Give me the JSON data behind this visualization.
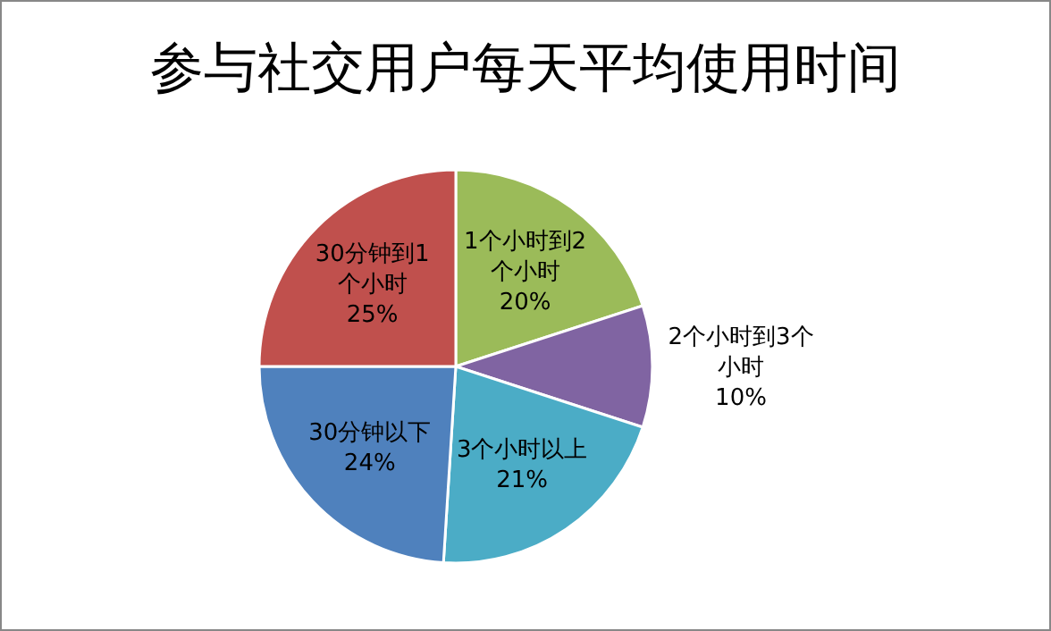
{
  "chart_data": {
    "type": "pie",
    "title": "参与社交用户每天平均使用时间",
    "categories": [
      "1个小时到2个小时",
      "2个小时到3个小时",
      "3个小时以上",
      "30分钟以下",
      "30分钟到1个小时"
    ],
    "values": [
      20,
      10,
      21,
      24,
      25
    ],
    "colors": [
      "#9bbb59",
      "#8064a2",
      "#4bacc6",
      "#4f81bd",
      "#c0504d"
    ],
    "value_labels": [
      "20%",
      "10%",
      "21%",
      "24%",
      "25%"
    ],
    "legend": false
  }
}
